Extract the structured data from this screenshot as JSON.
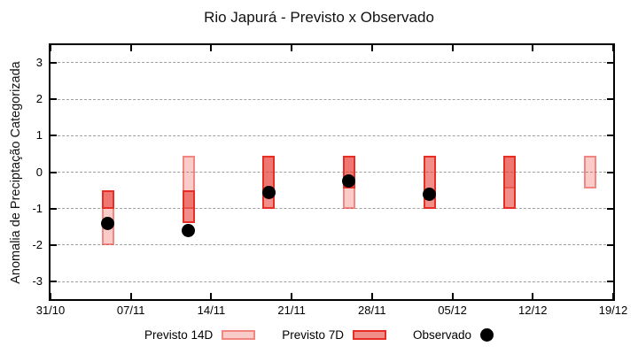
{
  "chart_data": {
    "type": "bar",
    "title": "Rio Japurá - Previsto x Observado",
    "ylabel": "Anomalia de Preciptação Categorizada",
    "ylim": [
      -3.48,
      3.48
    ],
    "y_ticks": [
      3,
      2,
      1,
      0,
      -1,
      -2,
      -3
    ],
    "x_tick_labels": [
      "31/10",
      "07/11",
      "14/11",
      "21/11",
      "28/11",
      "05/12",
      "12/12",
      "19/12"
    ],
    "x_span_days": 49,
    "grid": "horizontal-dashed",
    "legend_position": "bottom-center",
    "legend": [
      {
        "label": "Previsto 14D",
        "swatch": "light-red-box"
      },
      {
        "label": "Previsto 7D",
        "swatch": "red-box"
      },
      {
        "label": "Observado",
        "swatch": "black-dot"
      }
    ],
    "colors": {
      "base_red": "#e63228",
      "previsto_14d_fill": "rgba(230,50,40,0.25)",
      "previsto_14d_border": "rgba(230,50,40,0.45)",
      "previsto_7d_fill": "rgba(230,50,40,0.55)",
      "previsto_7d_border": "#e62e24",
      "observado": "#000000",
      "grid": "#a0a0a0",
      "frame": "#000000"
    },
    "points": [
      {
        "date": "05/11",
        "day_offset": 5,
        "previsto_14d": [
          -0.5,
          -2.0
        ],
        "previsto_7d": [
          -0.5,
          -1.0
        ],
        "observado": -1.4
      },
      {
        "date": "12/11",
        "day_offset": 12,
        "previsto_14d": [
          0.45,
          -1.0
        ],
        "previsto_7d": [
          -0.5,
          -1.4
        ],
        "observado": -1.6
      },
      {
        "date": "19/11",
        "day_offset": 19,
        "previsto_14d": [
          0.45,
          -0.7
        ],
        "previsto_7d": [
          0.45,
          -1.0
        ],
        "observado": -0.55
      },
      {
        "date": "26/11",
        "day_offset": 26,
        "previsto_14d": [
          0.45,
          -1.0
        ],
        "previsto_7d": [
          0.45,
          -0.45
        ],
        "observado": -0.25
      },
      {
        "date": "03/12",
        "day_offset": 33,
        "previsto_14d": null,
        "previsto_7d": [
          0.45,
          -1.0
        ],
        "observado": -0.6
      },
      {
        "date": "10/12",
        "day_offset": 40,
        "previsto_14d": [
          0.45,
          -0.45
        ],
        "previsto_7d": [
          0.45,
          -1.0
        ],
        "observado": null
      },
      {
        "date": "17/12",
        "day_offset": 47,
        "previsto_14d": [
          0.45,
          -0.45
        ],
        "previsto_7d": null,
        "observado": null
      }
    ]
  }
}
